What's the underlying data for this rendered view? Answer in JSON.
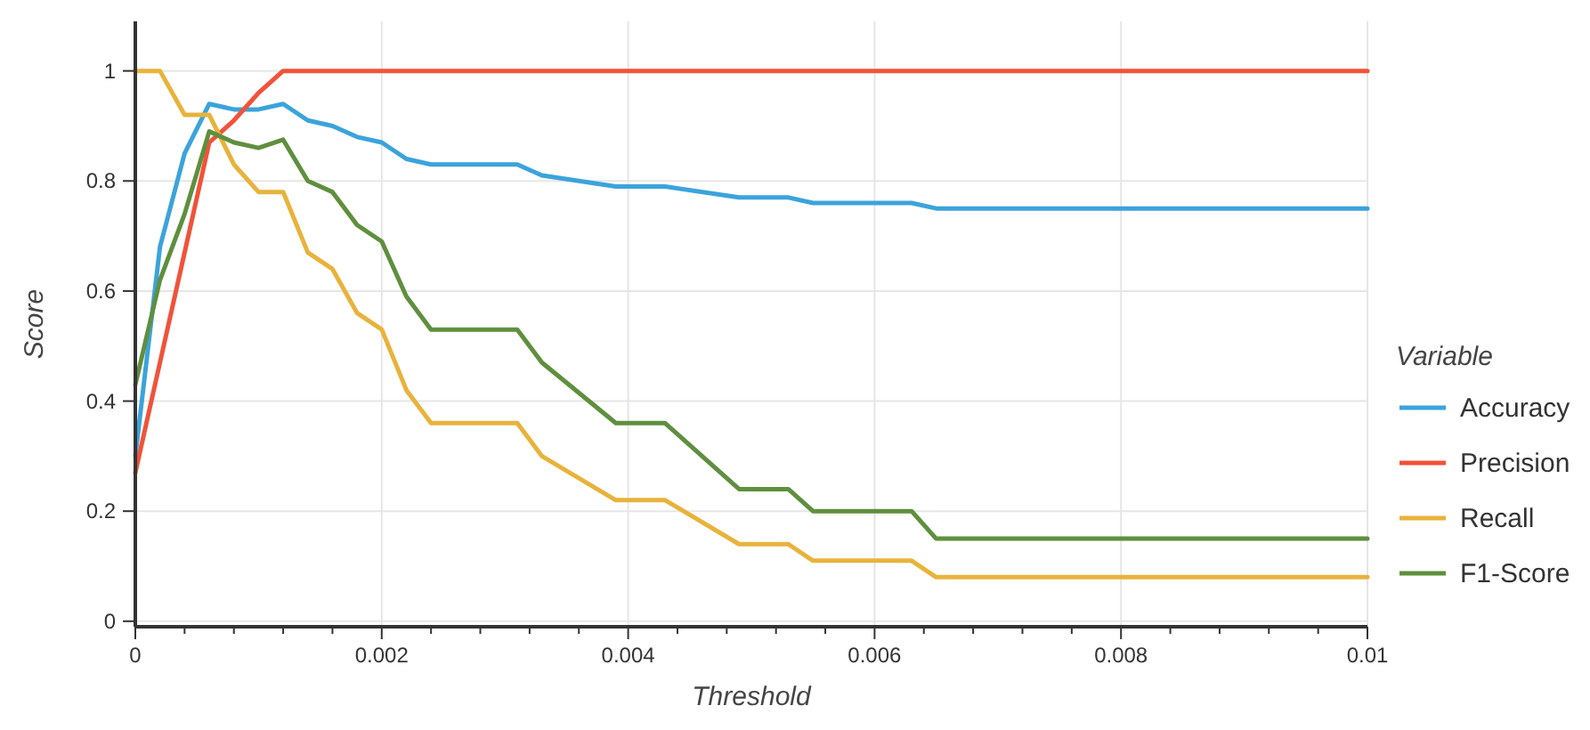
{
  "chart_data": {
    "type": "line",
    "xlabel": "Threshold",
    "ylabel": "Score",
    "legend_title": "Variable",
    "x": [
      0,
      0.0002,
      0.0004,
      0.0006,
      0.0008,
      0.001,
      0.0012,
      0.0014,
      0.0016,
      0.0018,
      0.002,
      0.0022,
      0.0024,
      0.0031,
      0.0033,
      0.0039,
      0.0043,
      0.0049,
      0.0053,
      0.0055,
      0.0063,
      0.0065,
      0.01
    ],
    "series": [
      {
        "name": "Accuracy",
        "color": "#3ba3dc",
        "values": [
          0.3,
          0.68,
          0.85,
          0.94,
          0.93,
          0.93,
          0.94,
          0.91,
          0.9,
          0.88,
          0.87,
          0.84,
          0.83,
          0.83,
          0.81,
          0.79,
          0.79,
          0.77,
          0.77,
          0.76,
          0.76,
          0.75,
          0.75
        ]
      },
      {
        "name": "Precision",
        "color": "#f0533a",
        "values": [
          0.27,
          0.47,
          0.67,
          0.87,
          0.91,
          0.96,
          1,
          1,
          1,
          1,
          1,
          1,
          1,
          1,
          1,
          1,
          1,
          1,
          1,
          1,
          1,
          1,
          1
        ]
      },
      {
        "name": "Recall",
        "color": "#e8b33c",
        "values": [
          1,
          1,
          0.92,
          0.92,
          0.83,
          0.78,
          0.78,
          0.67,
          0.64,
          0.56,
          0.53,
          0.42,
          0.36,
          0.36,
          0.3,
          0.22,
          0.22,
          0.14,
          0.14,
          0.11,
          0.11,
          0.08,
          0.08
        ]
      },
      {
        "name": "F1-Score",
        "color": "#5f8f3e",
        "values": [
          0.43,
          0.62,
          0.74,
          0.89,
          0.87,
          0.86,
          0.875,
          0.8,
          0.78,
          0.72,
          0.69,
          0.59,
          0.53,
          0.53,
          0.47,
          0.36,
          0.36,
          0.24,
          0.24,
          0.2,
          0.2,
          0.15,
          0.15
        ]
      }
    ],
    "xlim": [
      0,
      0.01
    ],
    "xticks": [
      0,
      {
        "value": 0.0004,
        "label": null
      },
      {
        "value": 0.0008,
        "label": null
      },
      {
        "value": 0.0012,
        "label": null
      },
      {
        "value": 0.0016,
        "label": null
      },
      0.002,
      {
        "value": 0.0024,
        "label": null
      },
      {
        "value": 0.0028,
        "label": null
      },
      {
        "value": 0.0032,
        "label": null
      },
      {
        "value": 0.0036,
        "label": null
      },
      0.004,
      {
        "value": 0.0044,
        "label": null
      },
      {
        "value": 0.0048,
        "label": null
      },
      {
        "value": 0.0052,
        "label": null
      },
      {
        "value": 0.0056,
        "label": null
      },
      0.006,
      {
        "value": 0.0064,
        "label": null
      },
      {
        "value": 0.0068,
        "label": null
      },
      {
        "value": 0.0072,
        "label": null
      },
      {
        "value": 0.0076,
        "label": null
      },
      0.008,
      {
        "value": 0.0084,
        "label": null
      },
      {
        "value": 0.0088,
        "label": null
      },
      {
        "value": 0.0092,
        "label": null
      },
      {
        "value": 0.0096,
        "label": null
      },
      0.01
    ],
    "ylim": [
      -0.01,
      1.09
    ],
    "yticks": [
      0,
      0.2,
      0.4,
      0.6,
      0.8,
      1
    ],
    "grid": true,
    "legend": "right",
    "marker": "none",
    "line_style": "solid"
  }
}
